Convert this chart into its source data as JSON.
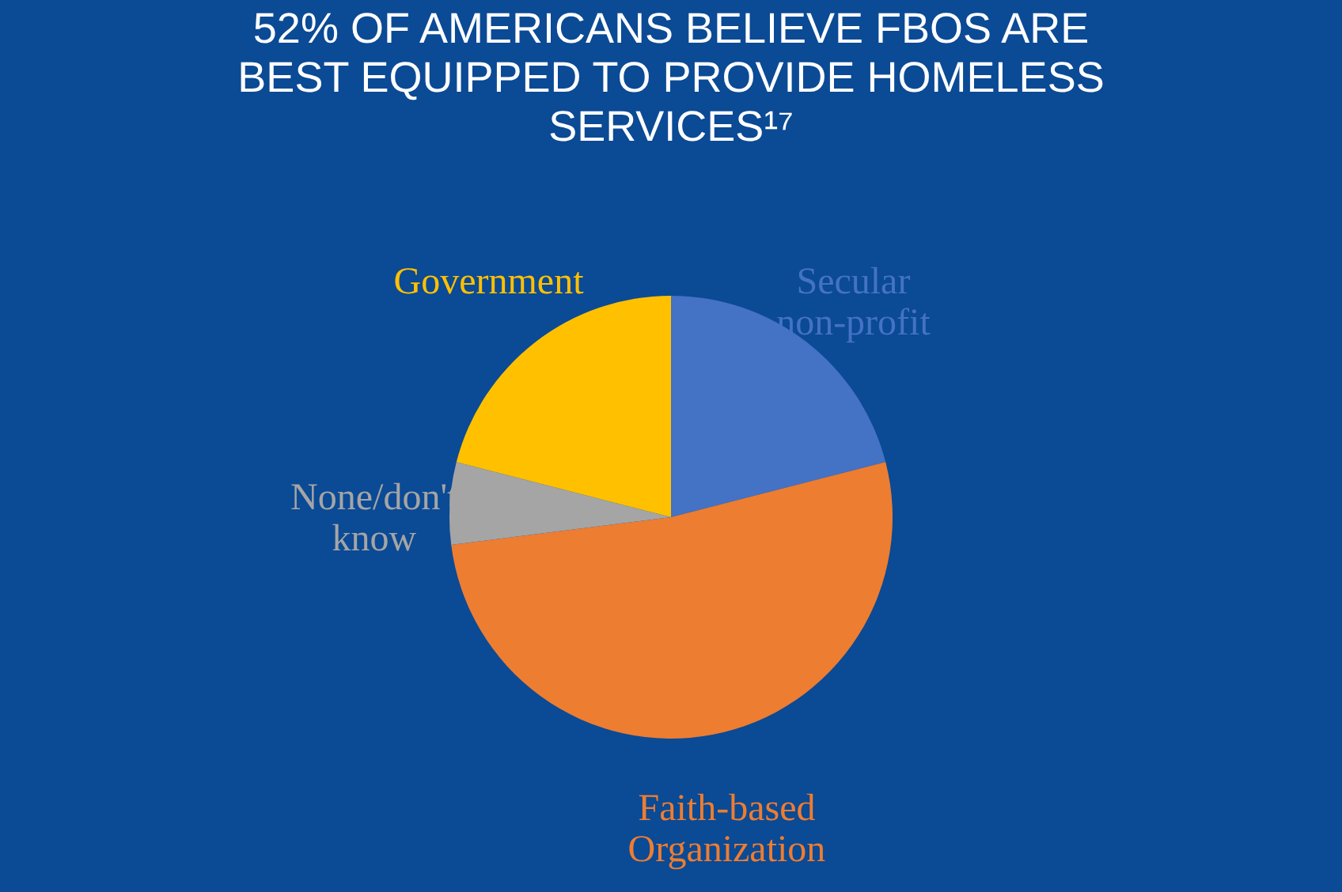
{
  "chart_data": {
    "type": "pie",
    "title": "52% OF AMERICANS BELIEVE FBOS ARE BEST EQUIPPED TO PROVIDE HOMELESS SERVICES¹⁷",
    "categories": [
      "Secular non-profit",
      "Faith-based Organization",
      "None/don't know",
      "Government"
    ],
    "values": [
      21,
      52,
      6,
      21
    ],
    "colors": [
      "#4472c4",
      "#ed7d31",
      "#a5a5a5",
      "#ffc000"
    ],
    "legend": false
  }
}
